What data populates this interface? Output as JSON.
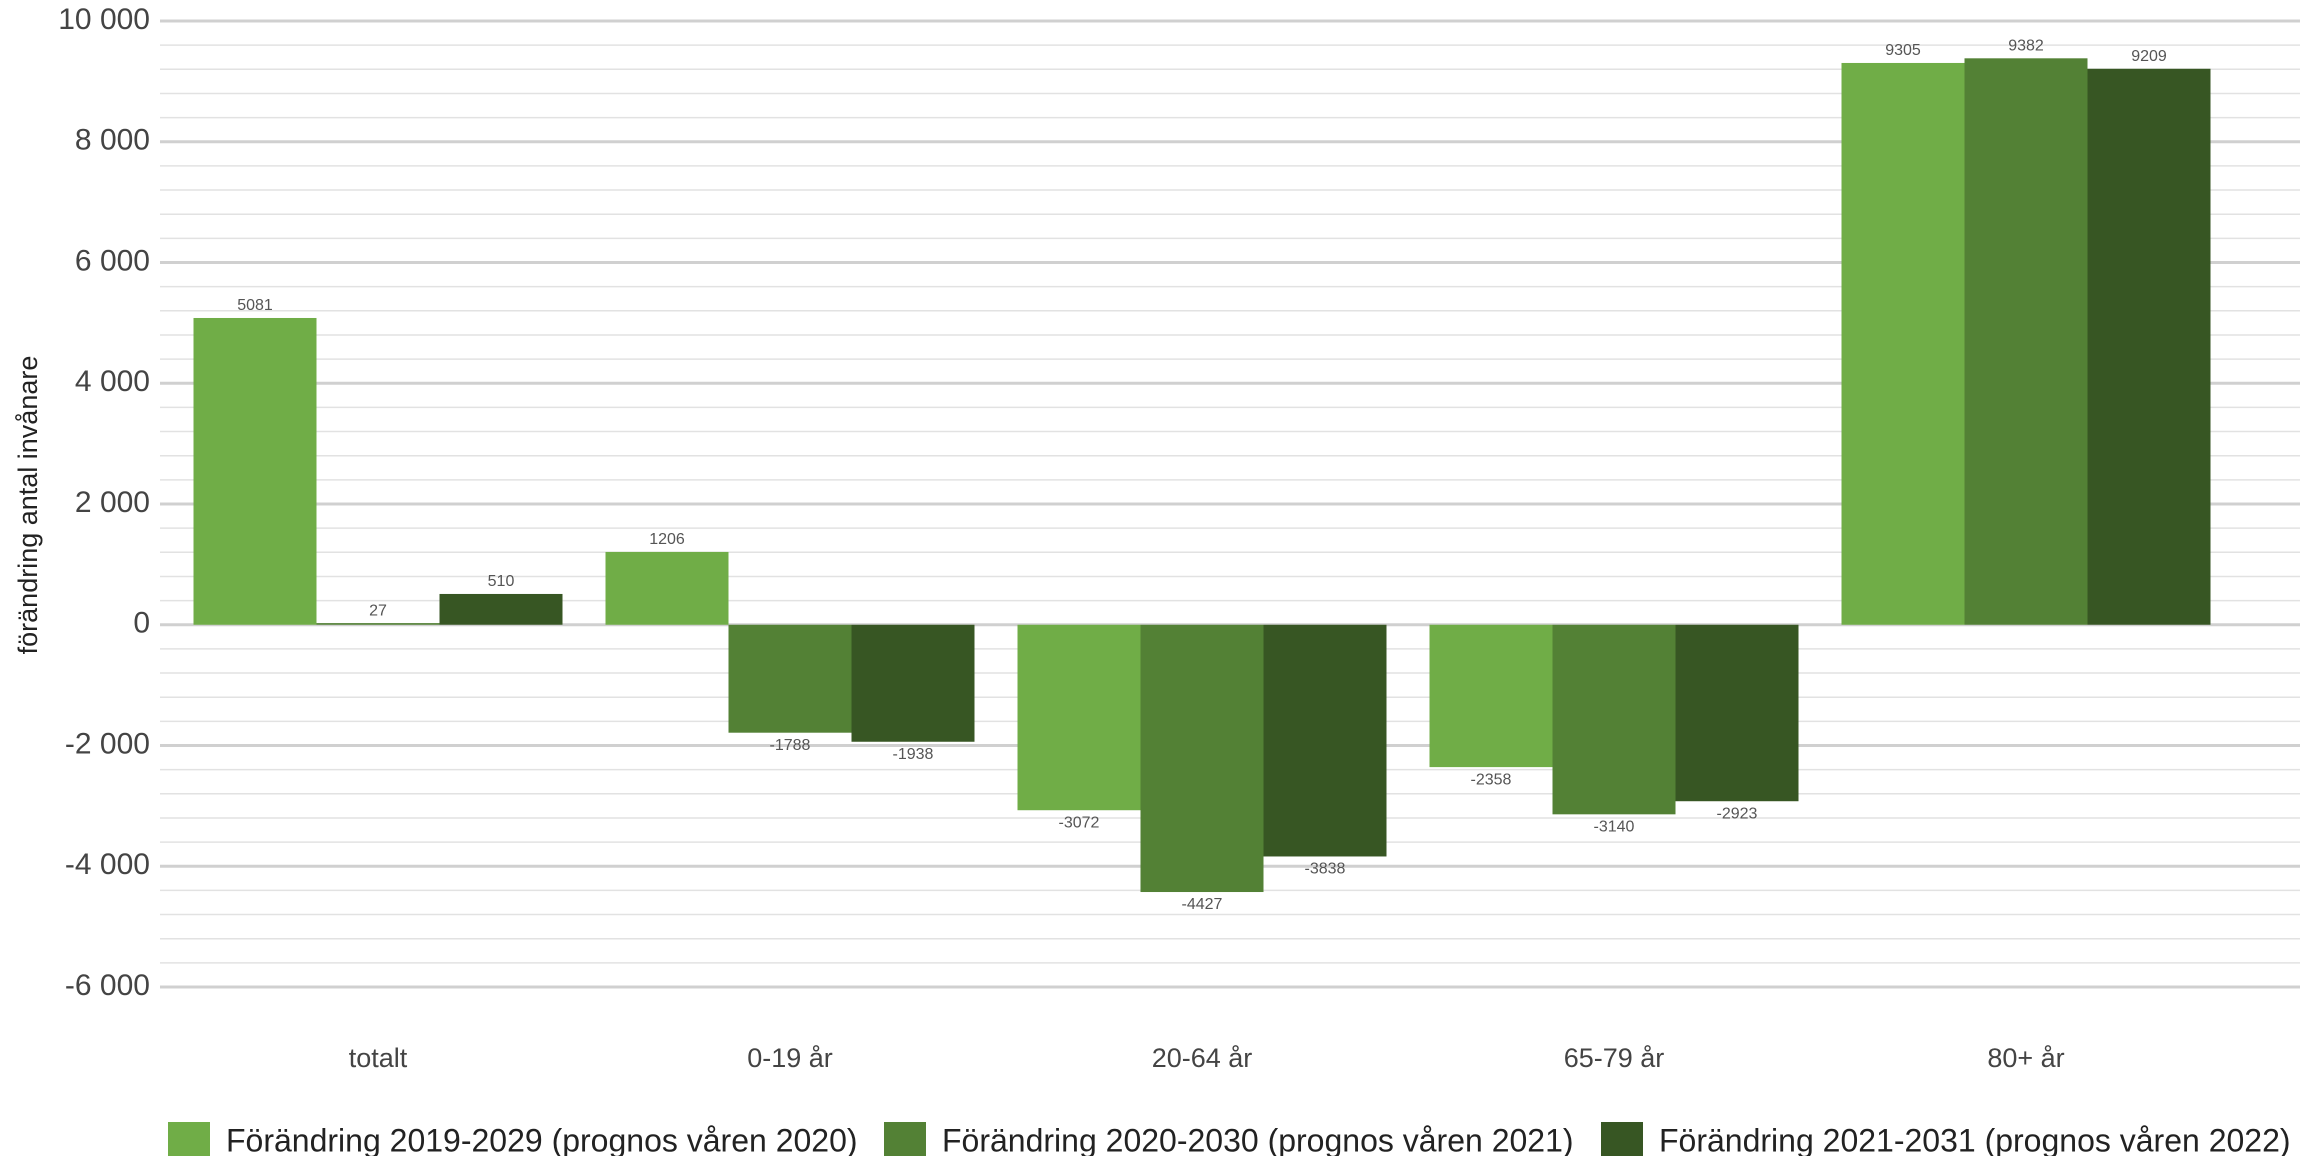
{
  "chart_data": {
    "type": "bar",
    "y_label": "förändring antal invånare",
    "categories": [
      "totalt",
      "0-19 år",
      "20-64 år",
      "65-79 år",
      "80+ år"
    ],
    "series": [
      {
        "name": "Förändring 2019-2029 (prognos våren 2020)",
        "color": "#70ad47",
        "values": [
          5081,
          1206,
          -3072,
          -2358,
          9305
        ]
      },
      {
        "name": "Förändring 2020-2030 (prognos våren 2021)",
        "color": "#538135",
        "values": [
          27,
          -1788,
          -4427,
          -3140,
          9382
        ]
      },
      {
        "name": "Förändring 2021-2031 (prognos våren 2022)",
        "color": "#375623",
        "values": [
          510,
          -1938,
          -3838,
          -2923,
          9209
        ]
      }
    ],
    "ylim": [
      -6000,
      10000
    ],
    "yticks": [
      {
        "value": -6000,
        "label": "-6 000"
      },
      {
        "value": -4000,
        "label": "-4 000"
      },
      {
        "value": -2000,
        "label": "-2 000"
      },
      0,
      {
        "value": 2000,
        "label": "2 000"
      },
      {
        "value": 4000,
        "label": "4 000"
      },
      {
        "value": 6000,
        "label": "6 000"
      },
      {
        "value": 8000,
        "label": "8 000"
      },
      {
        "value": 10000,
        "label": "10 000"
      }
    ],
    "grid": true,
    "legend": "bottom"
  }
}
